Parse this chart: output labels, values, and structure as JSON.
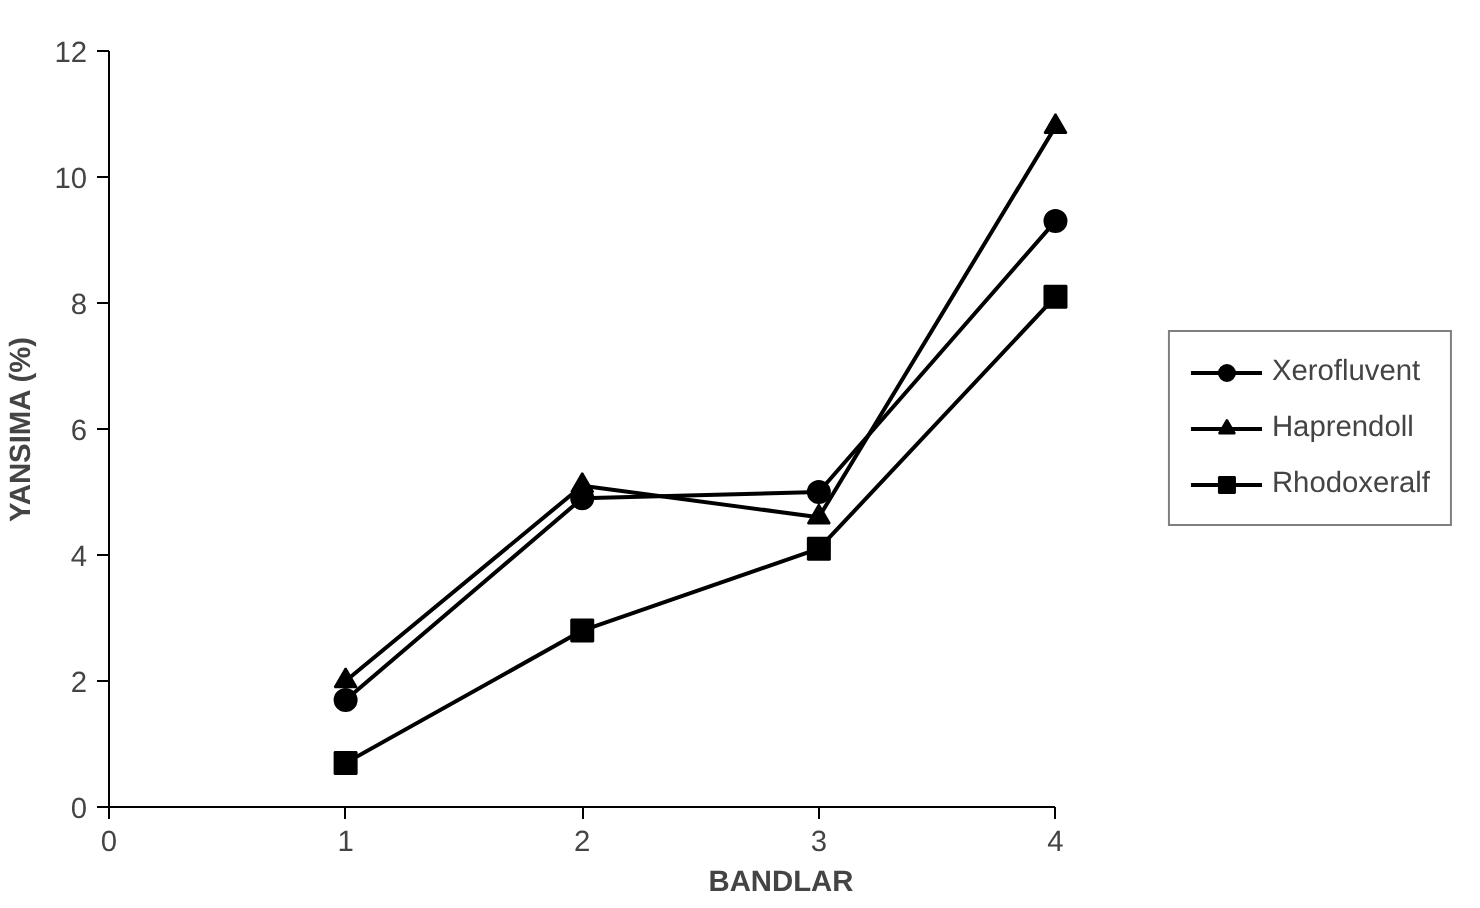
{
  "chart_data": {
    "type": "line",
    "xlabel": "BANDLAR",
    "ylabel": "YANSIMA (%)",
    "x": [
      1,
      2,
      3,
      4
    ],
    "xlim": [
      0,
      4
    ],
    "xticks": [
      0,
      1,
      2,
      3,
      4
    ],
    "ylim": [
      0,
      12
    ],
    "yticks": [
      0,
      2,
      4,
      6,
      8,
      10,
      12
    ],
    "grid": false,
    "legend": "right",
    "line_style": "solid",
    "series": [
      {
        "name": "Xerofluvent",
        "color": "#000000",
        "marker": "circle",
        "values": [
          1.7,
          4.9,
          5.0,
          9.3
        ]
      },
      {
        "name": "Haprendoll",
        "color": "#000000",
        "marker": "triangle",
        "values": [
          2.0,
          5.1,
          4.6,
          10.8
        ]
      },
      {
        "name": "Rhodoxeralf",
        "color": "#000000",
        "marker": "square",
        "values": [
          0.7,
          2.8,
          4.1,
          8.1
        ]
      }
    ]
  }
}
